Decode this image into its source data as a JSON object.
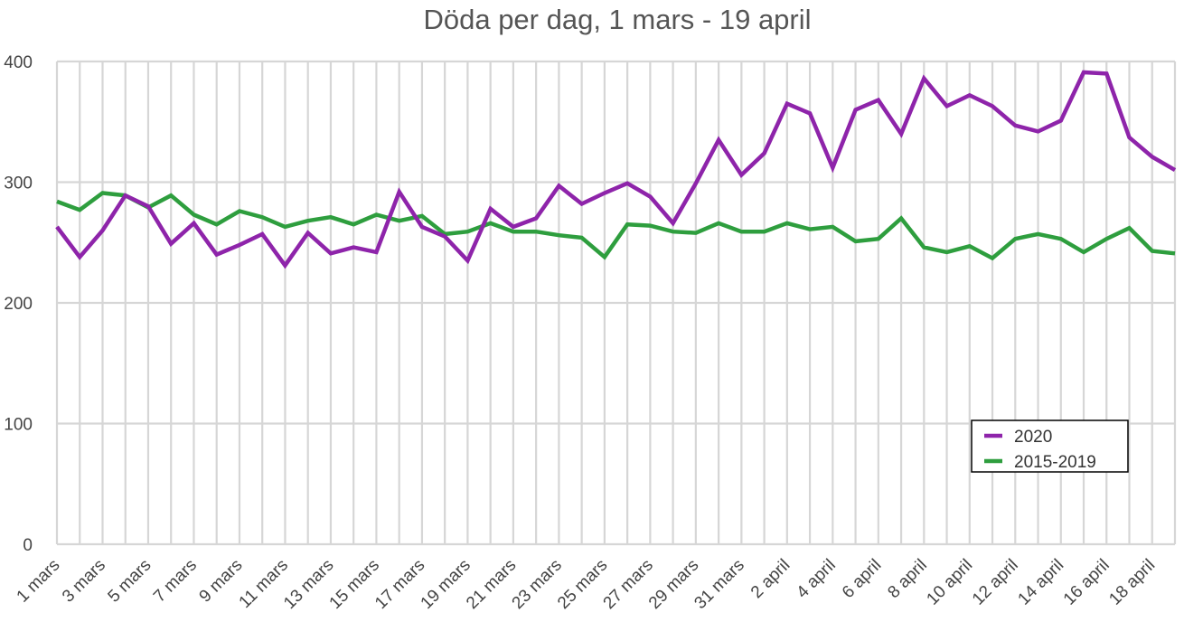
{
  "chart_data": {
    "type": "line",
    "title": "Döda per dag, 1 mars - 19 april",
    "xlabel": "",
    "ylabel": "",
    "ylim": [
      0,
      400
    ],
    "yticks": [
      "0",
      "100",
      "200",
      "300",
      "400"
    ],
    "grid": true,
    "legend_position": "bottom-right",
    "x": [
      "1 mars",
      "2 mars",
      "3 mars",
      "4 mars",
      "5 mars",
      "6 mars",
      "7 mars",
      "8 mars",
      "9 mars",
      "10 mars",
      "11 mars",
      "12 mars",
      "13 mars",
      "14 mars",
      "15 mars",
      "16 mars",
      "17 mars",
      "18 mars",
      "19 mars",
      "20 mars",
      "21 mars",
      "22 mars",
      "23 mars",
      "24 mars",
      "25 mars",
      "26 mars",
      "27 mars",
      "28 mars",
      "29 mars",
      "30 mars",
      "31 mars",
      "1 april",
      "2 april",
      "3 april",
      "4 april",
      "5 april",
      "6 april",
      "7 april",
      "8 april",
      "9 april",
      "10 april",
      "11 april",
      "12 april",
      "13 april",
      "14 april",
      "15 april",
      "16 april",
      "17 april",
      "18 april",
      "19 april"
    ],
    "xtick_labels": [
      "1 mars",
      "3 mars",
      "5 mars",
      "7 mars",
      "9 mars",
      "11 mars",
      "13 mars",
      "15 mars",
      "17 mars",
      "19 mars",
      "21 mars",
      "23 mars",
      "25 mars",
      "27 mars",
      "29 mars",
      "31 mars",
      "2 april",
      "4 april",
      "6 april",
      "8 april",
      "10 april",
      "12 april",
      "14 april",
      "16 april",
      "18 april"
    ],
    "series": [
      {
        "name": "2020",
        "color": "#8e24aa",
        "values": [
          263,
          238,
          260,
          289,
          280,
          249,
          266,
          240,
          248,
          257,
          231,
          258,
          241,
          246,
          242,
          292,
          263,
          255,
          235,
          278,
          263,
          270,
          297,
          282,
          291,
          299,
          288,
          266,
          299,
          335,
          306,
          324,
          365,
          357,
          312,
          360,
          368,
          340,
          386,
          363,
          372,
          363,
          347,
          342,
          351,
          391,
          390,
          337,
          321,
          310
        ]
      },
      {
        "name": "2015-2019",
        "color": "#2e9e3e",
        "values": [
          284,
          277,
          291,
          289,
          279,
          289,
          273,
          265,
          276,
          271,
          263,
          268,
          271,
          265,
          273,
          268,
          272,
          257,
          259,
          266,
          259,
          259,
          256,
          254,
          238,
          265,
          264,
          259,
          258,
          266,
          259,
          259,
          266,
          261,
          263,
          251,
          253,
          270,
          246,
          242,
          247,
          237,
          253,
          257,
          253,
          242,
          253,
          262,
          243,
          241
        ]
      }
    ]
  }
}
